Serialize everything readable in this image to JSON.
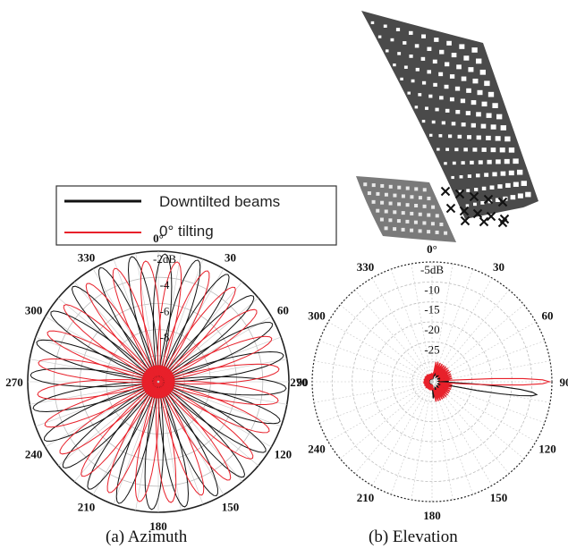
{
  "legend": {
    "entries": [
      {
        "label": "Downtilted beams",
        "color": "#111111"
      },
      {
        "label": "0° tilting",
        "color": "#e8202a"
      }
    ]
  },
  "captions": {
    "a": "(a) Azimuth",
    "b": "(b) Elevation"
  },
  "colors": {
    "downtilted": "#111111",
    "zero_tilt": "#e8202a",
    "panel_dark": "#4a4a4a",
    "panel_light": "#7a7a7a"
  },
  "chart_data": [
    {
      "id": "azimuth",
      "type": "polar",
      "title": "(a) Azimuth",
      "angle_ticks": [
        "0°",
        "30",
        "60",
        "90",
        "120",
        "150",
        "180",
        "210",
        "240",
        "270",
        "300",
        "330"
      ],
      "radial_labels": [
        "-2dB",
        "-4",
        "-6",
        "-8"
      ],
      "grid": true,
      "series": [
        {
          "name": "Downtilted beams",
          "beam_centers_deg": [
            3,
            18,
            33,
            48,
            63,
            78,
            93,
            108,
            123,
            138,
            153,
            168,
            183,
            198,
            213,
            228,
            243,
            258,
            273,
            288,
            303,
            318,
            333,
            348
          ],
          "peak_fraction": 0.98
        },
        {
          "name": "0° tilting",
          "beam_centers_deg": [
            -6,
            9,
            24,
            39,
            54,
            69,
            84,
            99,
            114,
            129,
            144,
            159,
            174,
            189,
            204,
            219,
            234,
            249,
            264,
            279,
            294,
            309,
            324,
            339
          ],
          "peak_fraction": 0.93
        }
      ]
    },
    {
      "id": "elevation",
      "type": "polar",
      "title": "(b) Elevation",
      "angle_ticks": [
        "0°",
        "30",
        "60",
        "90",
        "120",
        "150",
        "180",
        "210",
        "240",
        "270",
        "300",
        "330"
      ],
      "radial_labels": [
        "-5dB",
        "-10",
        "-15",
        "-20",
        "-25"
      ],
      "grid": true,
      "series": [
        {
          "name": "Downtilted beams",
          "main_lobe_deg": 97,
          "peak_fraction": 0.88
        },
        {
          "name": "0° tilting",
          "main_lobe_deg": 90,
          "peak_fraction": 0.98
        }
      ]
    }
  ]
}
